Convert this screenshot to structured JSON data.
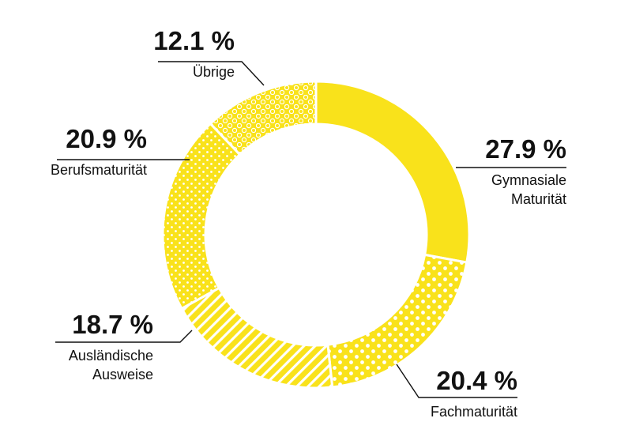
{
  "chart_data": {
    "type": "pie",
    "variant": "donut",
    "unit": "%",
    "slices": [
      {
        "name": "Gymnasiale Maturität",
        "label_lines": [
          "Gymnasiale",
          "Maturität"
        ],
        "value": 27.9,
        "value_label": "27.9 %",
        "pattern": "solid"
      },
      {
        "name": "Fachmaturität",
        "label_lines": [
          "Fachmaturität"
        ],
        "value": 20.4,
        "value_label": "20.4 %",
        "pattern": "dots"
      },
      {
        "name": "Ausländische Ausweise",
        "label_lines": [
          "Ausländische",
          "Ausweise"
        ],
        "value": 18.7,
        "value_label": "18.7 %",
        "pattern": "stripes"
      },
      {
        "name": "Berufsmaturität",
        "label_lines": [
          "Berufsmaturität"
        ],
        "value": 20.9,
        "value_label": "20.9 %",
        "pattern": "small-dots"
      },
      {
        "name": "Übrige",
        "label_lines": [
          "Übrige"
        ],
        "value": 12.1,
        "value_label": "12.1 %",
        "pattern": "rings"
      }
    ]
  },
  "colors": {
    "slice": "#f9e21b",
    "pattern": "#ffffff",
    "text": "#111111",
    "background": "#ffffff"
  }
}
